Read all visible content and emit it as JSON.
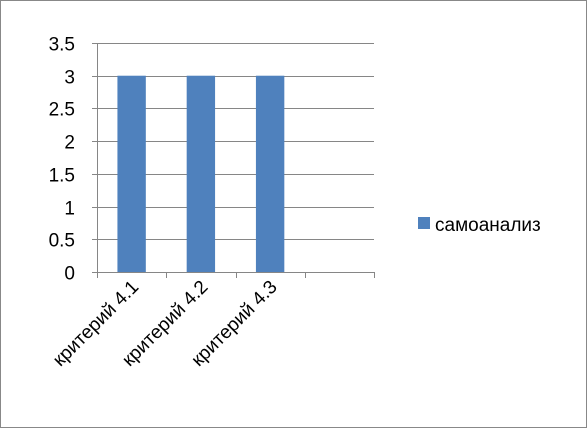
{
  "chart_data": {
    "type": "bar",
    "title": "",
    "xlabel": "",
    "ylabel": "",
    "categories": [
      "критерий 4.1",
      "критерий 4.2",
      "критерий 4.3",
      ""
    ],
    "series": [
      {
        "name": "самоанализ",
        "values": [
          3,
          3,
          3,
          null
        ],
        "color": "#4f81bd"
      }
    ],
    "ylim": [
      0,
      3.5
    ],
    "yticks": [
      0,
      0.5,
      1,
      1.5,
      2,
      2.5,
      3,
      3.5
    ],
    "ytick_labels": [
      "0",
      "0.5",
      "1",
      "1.5",
      "2",
      "2.5",
      "3",
      "3.5"
    ],
    "grid": true,
    "legend_position": "right"
  }
}
